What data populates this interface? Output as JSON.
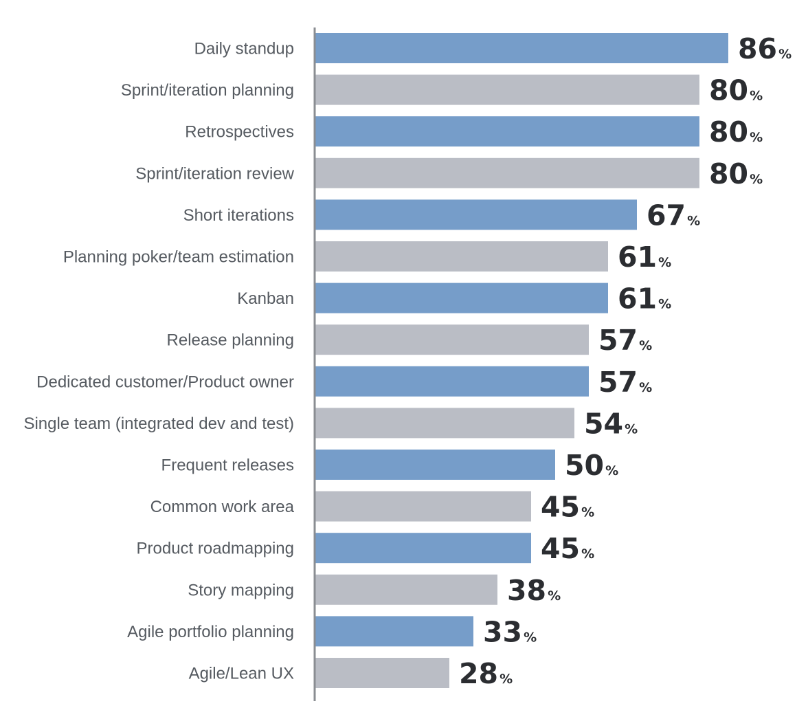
{
  "chart_data": {
    "type": "bar",
    "orientation": "horizontal",
    "title": "",
    "xlabel": "",
    "ylabel": "",
    "xlim": [
      0,
      100
    ],
    "grid": false,
    "legend": "none",
    "value_suffix": "%",
    "categories": [
      "Daily standup",
      "Sprint/iteration planning",
      "Retrospectives",
      "Sprint/iteration review",
      "Short iterations",
      "Planning poker/team estimation",
      "Kanban",
      "Release planning",
      "Dedicated customer/Product owner",
      "Single team (integrated dev and test)",
      "Frequent releases",
      "Common work area",
      "Product roadmapping",
      "Story mapping",
      "Agile portfolio planning",
      "Agile/Lean UX"
    ],
    "values": [
      86,
      80,
      80,
      80,
      67,
      61,
      61,
      57,
      57,
      54,
      50,
      45,
      45,
      38,
      33,
      28
    ],
    "colors": {
      "blue": "#769dc9",
      "gray": "#babdc5",
      "axis": "#8a8d92",
      "label_text": "#555a60",
      "value_text": "#2b2d31"
    },
    "color_pattern": [
      "blue",
      "gray"
    ]
  }
}
